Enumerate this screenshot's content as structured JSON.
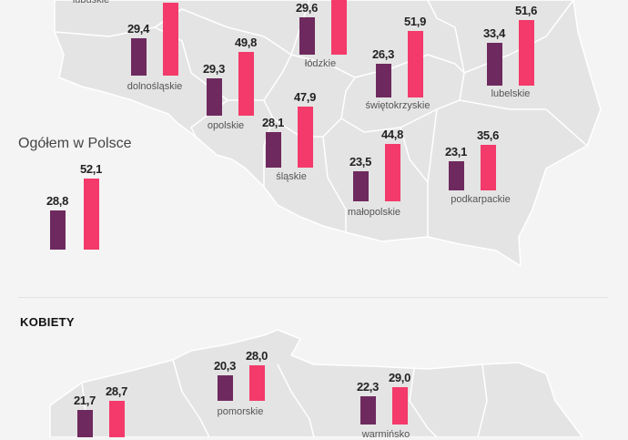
{
  "colors": {
    "bar_purple": "#6e2a5e",
    "bar_pink": "#f33a6a",
    "map_fill": "#e4e4e4",
    "map_border": "#ffffff",
    "background": "#f4f4f4"
  },
  "overall": {
    "title": "Ogółem w Polsce",
    "values": [
      "28,8",
      "52,1"
    ]
  },
  "women": {
    "heading": "KOBIETY"
  },
  "regions": [
    {
      "id": "lubuskie",
      "name": "lubuskie",
      "values": [
        "",
        ""
      ]
    },
    {
      "id": "dolnoslaskie",
      "name": "dolnośląskie",
      "values": [
        "29,4",
        ""
      ]
    },
    {
      "id": "opolskie",
      "name": "opolskie",
      "values": [
        "29,3",
        "49,8"
      ]
    },
    {
      "id": "slaskie",
      "name": "śląskie",
      "values": [
        "28,1",
        "47,9"
      ]
    },
    {
      "id": "lodzkie",
      "name": "łódzkie",
      "values": [
        "29,6",
        ""
      ]
    },
    {
      "id": "swietokrzyskie",
      "name": "świętokrzyskie",
      "values": [
        "26,3",
        "51,9"
      ]
    },
    {
      "id": "lubelskie",
      "name": "lubelskie",
      "values": [
        "33,4",
        "51,6"
      ]
    },
    {
      "id": "malopolskie",
      "name": "małopolskie",
      "values": [
        "23,5",
        "44,8"
      ]
    },
    {
      "id": "podkarpackie",
      "name": "podkarpackie",
      "values": [
        "23,1",
        "35,6"
      ]
    },
    {
      "id": "pomorskie",
      "name": "pomorskie",
      "values": [
        "20,3",
        "28,0"
      ]
    },
    {
      "id": "warminsko",
      "name": "warmińsko",
      "values": [
        "22,3",
        "29,0"
      ]
    },
    {
      "id": "k_west",
      "name": "",
      "values": [
        "21,7",
        "28,7"
      ]
    }
  ]
}
